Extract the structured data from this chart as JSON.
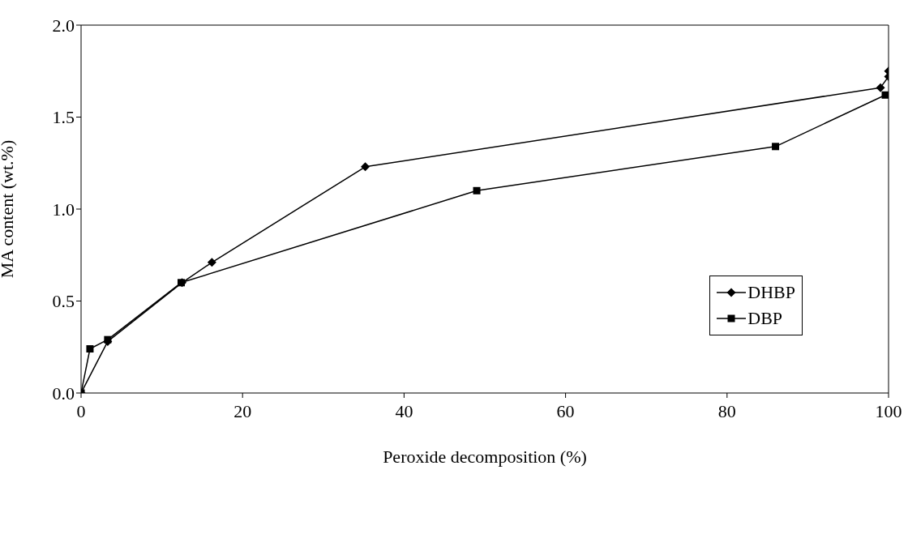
{
  "chart_data": {
    "type": "line",
    "xlabel": "Peroxide decomposition (%)",
    "ylabel": "MA content (wt.%)",
    "xlim": [
      0,
      100
    ],
    "xticks": [
      0,
      20,
      40,
      60,
      80,
      100
    ],
    "ylim": [
      0,
      2
    ],
    "yticks": [
      {
        "value": 0,
        "label": "0.0"
      },
      {
        "value": 0.5,
        "label": "0.5"
      },
      {
        "value": 1,
        "label": "1.0"
      },
      {
        "value": 1.5,
        "label": "1.5"
      },
      {
        "value": 2,
        "label": "2.0"
      }
    ],
    "legend": "right",
    "series": [
      {
        "name": "DHBP",
        "color": "#000000",
        "marker": "diamond",
        "x": [
          0,
          3.3,
          12.5,
          16.2,
          35.2,
          99,
          100,
          100
        ],
        "values": [
          0,
          0.28,
          0.6,
          0.71,
          1.23,
          1.66,
          1.72,
          1.75
        ]
      },
      {
        "name": "DBP",
        "color": "#000000",
        "marker": "square",
        "x": [
          0,
          1.1,
          3.3,
          12.4,
          49,
          86,
          99.6
        ],
        "values": [
          0,
          0.24,
          0.29,
          0.6,
          1.1,
          1.34,
          1.62
        ]
      }
    ]
  }
}
